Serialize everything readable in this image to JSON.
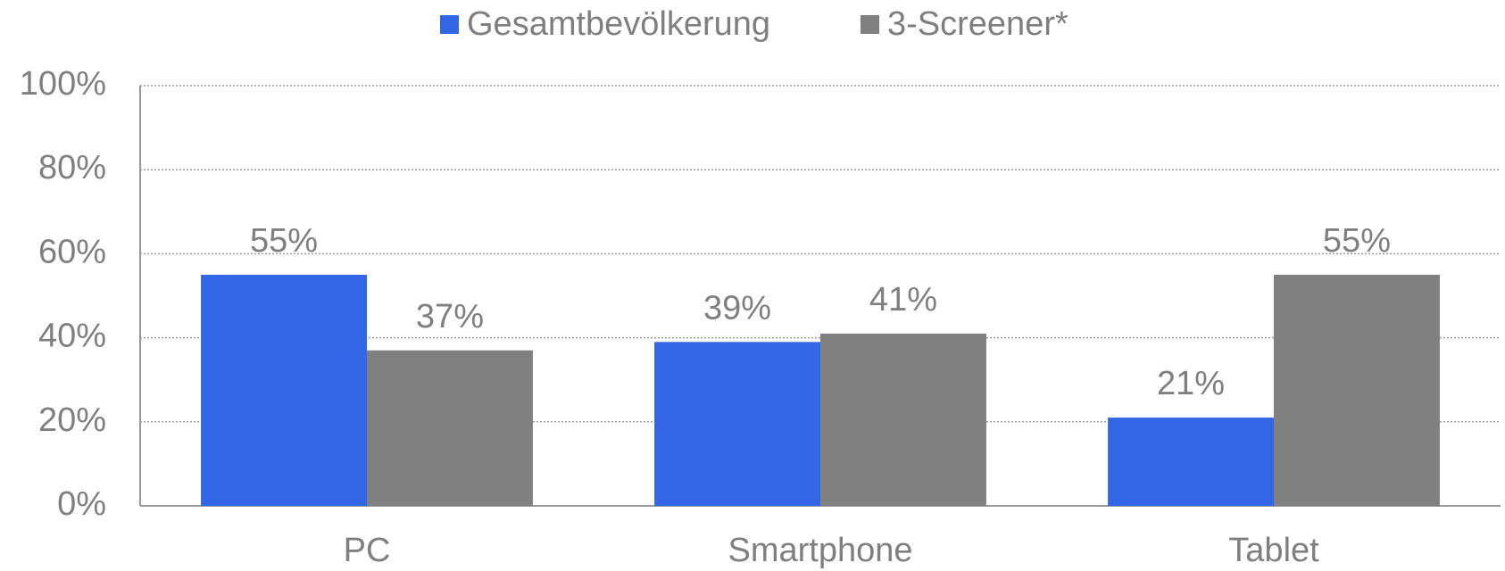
{
  "chart_data": {
    "type": "bar",
    "categories": [
      "PC",
      "Smartphone",
      "Tablet"
    ],
    "series": [
      {
        "name": "Gesamtbevölkerung",
        "color": "#3366e6",
        "values": [
          55,
          39,
          21
        ],
        "value_labels": [
          "55%",
          "39%",
          "21%"
        ]
      },
      {
        "name": "3-Screener*",
        "color": "#808080",
        "values": [
          37,
          41,
          55
        ],
        "value_labels": [
          "37%",
          "41%",
          "55%"
        ]
      }
    ],
    "ylim": [
      0,
      100
    ],
    "yticks": [
      {
        "value": 0,
        "label": "0%"
      },
      {
        "value": 20,
        "label": "20%"
      },
      {
        "value": 40,
        "label": "40%"
      },
      {
        "value": 60,
        "label": "60%"
      },
      {
        "value": 80,
        "label": "80%"
      },
      {
        "value": 100,
        "label": "100%"
      }
    ],
    "grid": true,
    "legend": "top"
  }
}
